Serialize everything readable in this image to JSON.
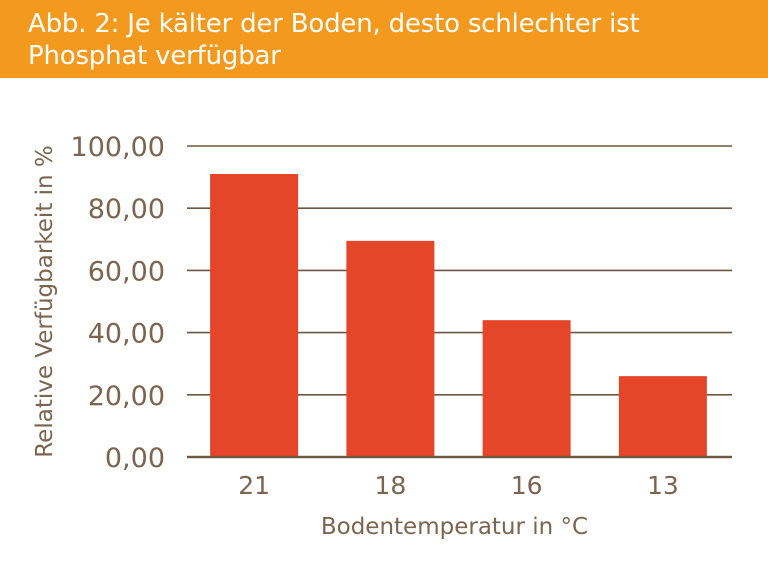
{
  "colors": {
    "header_bg": "#f39a1e",
    "bar": "#e5462a",
    "text": "#7c6550",
    "grid": "#6e5842"
  },
  "header": {
    "title": "Abb. 2: Je kälter der Boden, desto schlechter ist Phosphat verfügbar"
  },
  "chart_data": {
    "type": "bar",
    "title": "Abb. 2: Je kälter der Boden, desto schlechter ist Phosphat verfügbar",
    "xlabel": "Bodentemperatur in °C",
    "ylabel": "Relative Verfügbarkeit in %",
    "categories": [
      "21",
      "18",
      "16",
      "13"
    ],
    "values": [
      91,
      69.5,
      44,
      26
    ],
    "ylim": [
      0,
      100
    ],
    "yticks": [
      "0,00",
      "20,00",
      "40,00",
      "60,00",
      "80,00",
      "100,00"
    ],
    "grid": true,
    "legend": "none"
  }
}
